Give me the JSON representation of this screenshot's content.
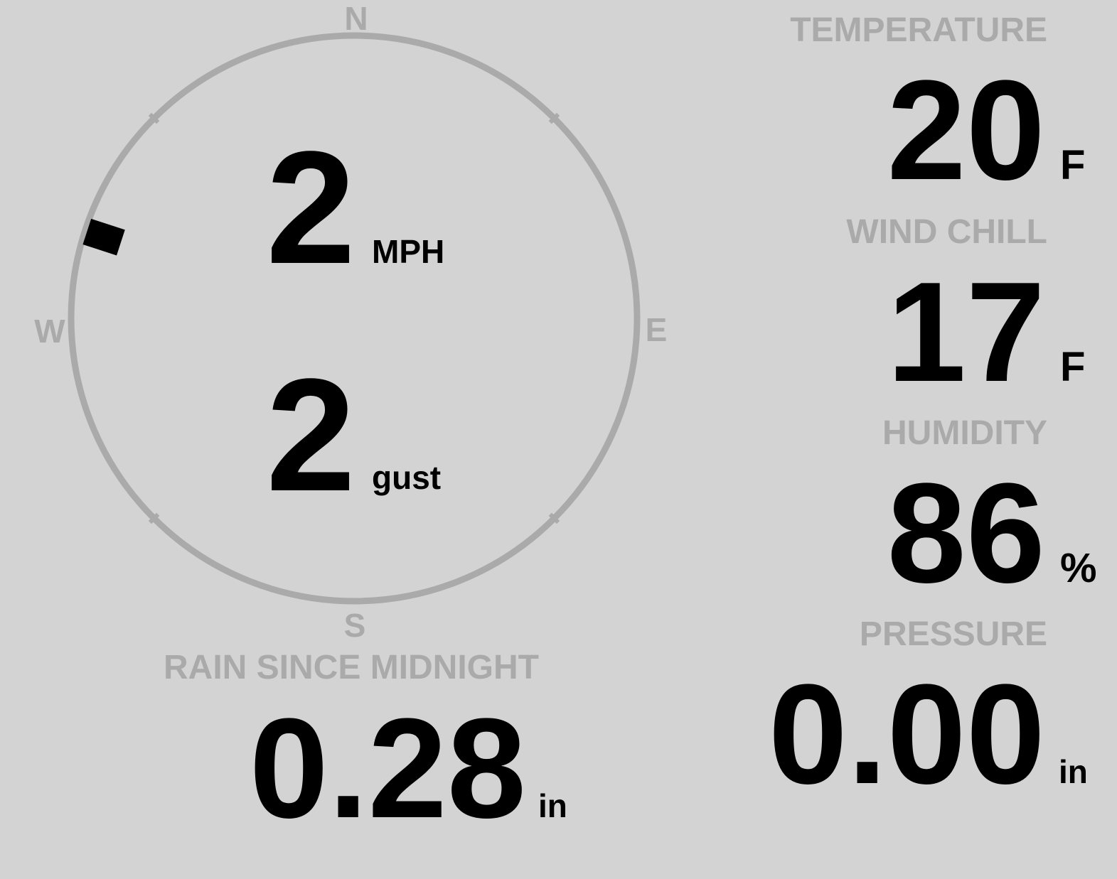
{
  "colors": {
    "background": "#d3d3d3",
    "label": "#aaaaaa",
    "value": "#000000"
  },
  "compass": {
    "north": "N",
    "east": "E",
    "south": "S",
    "west": "W",
    "wind_direction_deg": 288,
    "speed": "2",
    "speed_unit": "MPH",
    "gust": "2",
    "gust_unit": "gust"
  },
  "rain": {
    "label": "RAIN SINCE MIDNIGHT",
    "value": "0.28",
    "unit": "in"
  },
  "temperature": {
    "label": "TEMPERATURE",
    "value": "20",
    "unit": "F"
  },
  "wind_chill": {
    "label": "WIND CHILL",
    "value": "17",
    "unit": "F"
  },
  "humidity": {
    "label": "HUMIDITY",
    "value": "86",
    "unit": "%"
  },
  "pressure": {
    "label": "PRESSURE",
    "value": "0.00",
    "unit": "in"
  }
}
